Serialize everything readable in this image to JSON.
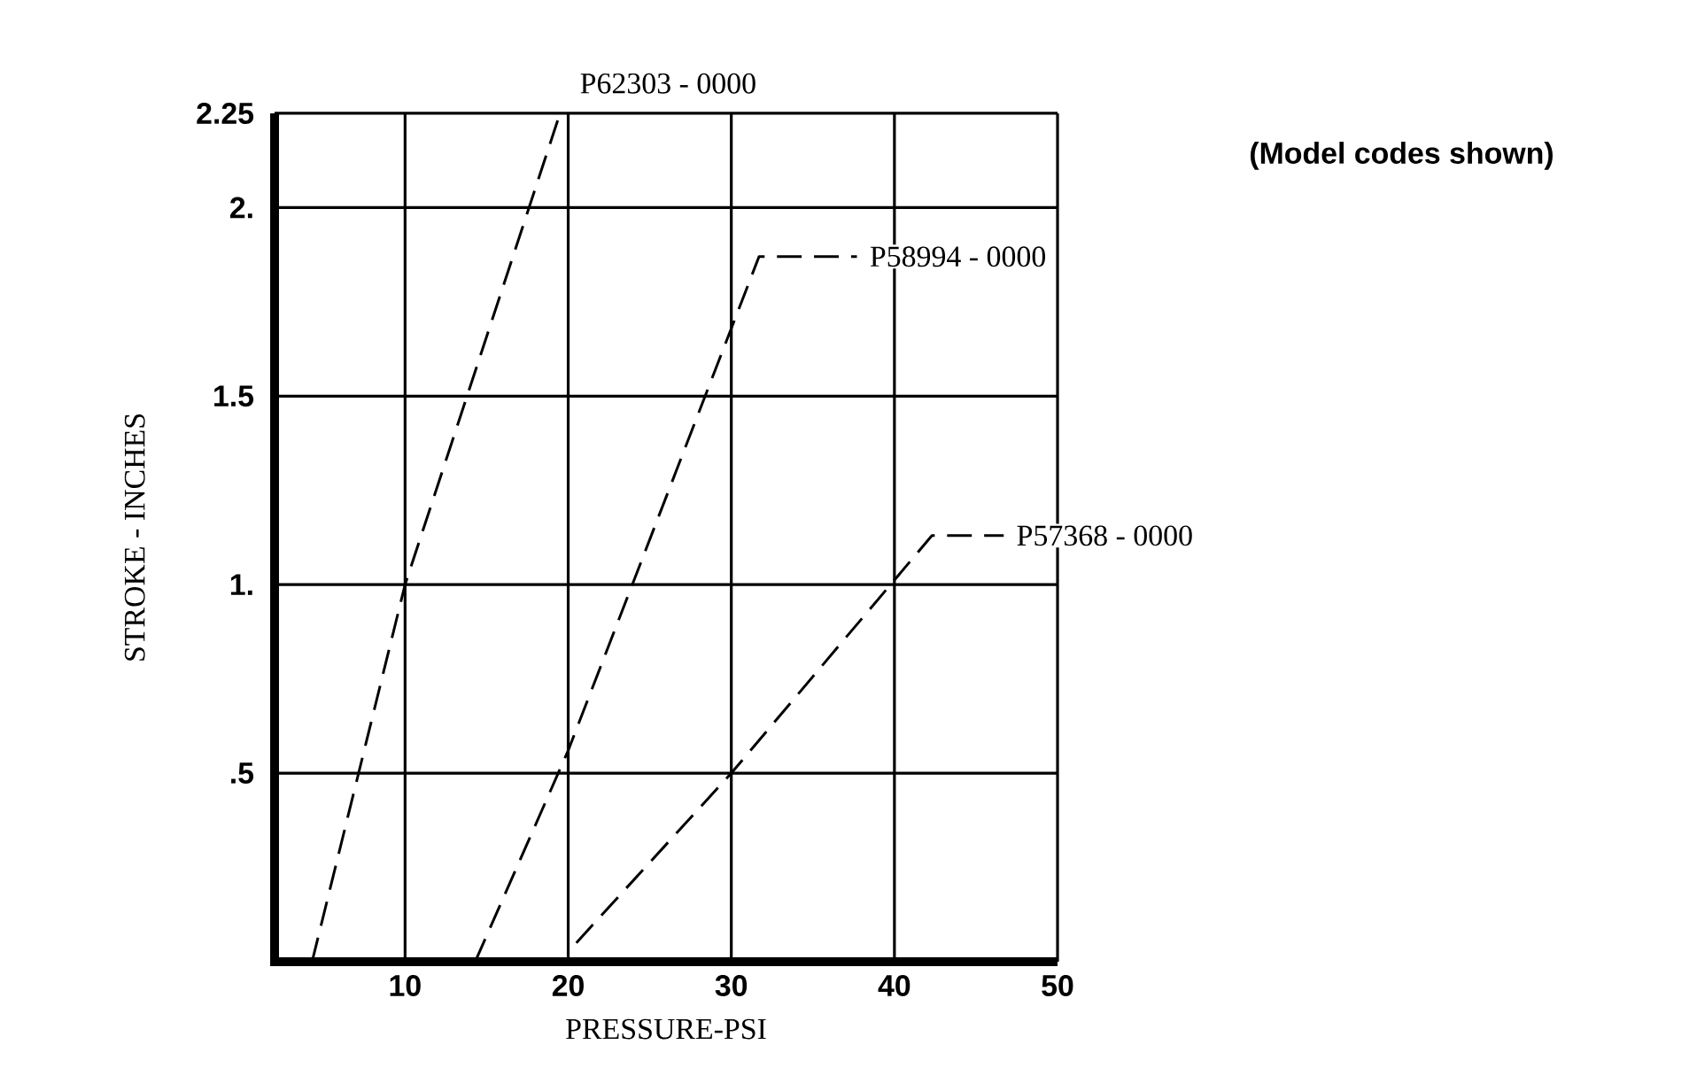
{
  "chart_data": {
    "type": "line",
    "xlabel": "PRESSURE-PSI",
    "ylabel": "STROKE - INCHES",
    "xlim": [
      2,
      50
    ],
    "xticks": [
      10,
      20,
      30,
      40,
      50
    ],
    "ylim": [
      0,
      2.25
    ],
    "yticks": [
      {
        "value": 0.5,
        "label": ".5"
      },
      {
        "value": 1,
        "label": "1."
      },
      1.5,
      {
        "value": 2,
        "label": "2."
      },
      2.25
    ],
    "grid": true,
    "line_style": "dashed",
    "marker": "none",
    "series": [
      {
        "color": "#000000",
        "x": [
          4.3,
          10,
          19.5
        ],
        "values": [
          0,
          1,
          2.25
        ]
      },
      {
        "color": "#000000",
        "x": [
          14.3,
          20,
          31.7,
          37.7
        ],
        "values": [
          0,
          0.56,
          1.87,
          1.87
        ]
      },
      {
        "color": "#000000",
        "x": [
          20.5,
          30,
          42.3,
          46.7
        ],
        "values": [
          0.05,
          0.5,
          1.13,
          1.13
        ]
      }
    ],
    "annotations": [
      {
        "text": "P62303 - 0000",
        "x": 19.5,
        "y": 2.25
      },
      {
        "text": "P58994 - 0000",
        "x": 37.7,
        "y": 1.87
      },
      {
        "text": "P57368 - 0000",
        "x": 46.7,
        "y": 1.13
      },
      "(Model codes shown)"
    ]
  }
}
